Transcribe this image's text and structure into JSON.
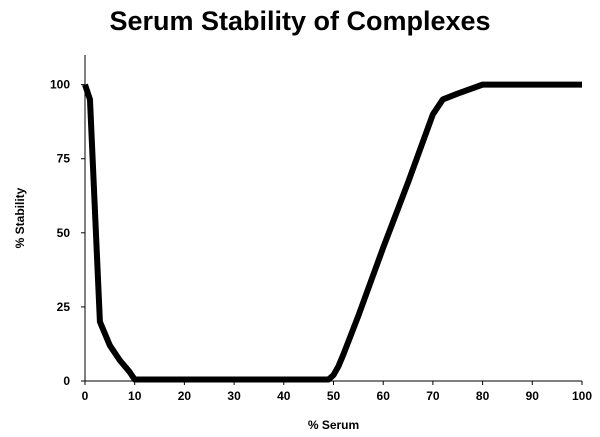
{
  "chart_data": {
    "type": "line",
    "title": "Serum Stability of Complexes",
    "xlabel": "% Serum",
    "ylabel": "% Stability",
    "xlim": [
      0,
      100
    ],
    "ylim": [
      0,
      110
    ],
    "x_ticks": [
      0,
      10,
      20,
      30,
      40,
      50,
      60,
      70,
      80,
      90,
      100
    ],
    "y_ticks": [
      0,
      25,
      50,
      75,
      100
    ],
    "grid": false,
    "legend": "none",
    "series": [
      {
        "color": "#000000",
        "x": [
          0,
          1,
          3,
          5,
          7,
          9,
          10,
          20,
          30,
          40,
          49,
          50,
          51,
          52,
          55,
          60,
          65,
          70,
          72,
          75,
          80,
          90,
          100
        ],
        "y": [
          100,
          95,
          20,
          12,
          7,
          3,
          0.5,
          0.5,
          0.5,
          0.5,
          0.5,
          2,
          5,
          9,
          22,
          45,
          67,
          90,
          95,
          97,
          100,
          100,
          100
        ]
      }
    ]
  }
}
